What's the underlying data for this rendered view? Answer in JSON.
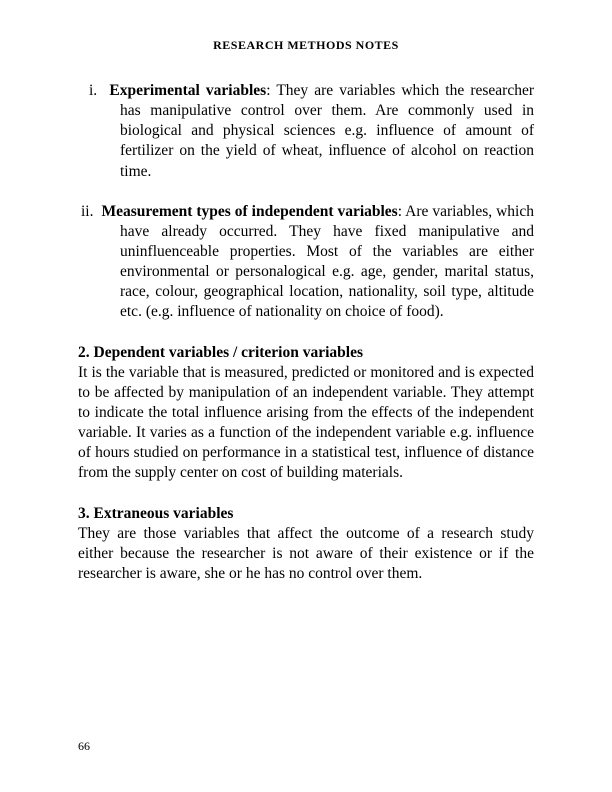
{
  "header": {
    "title": "RESEARCH METHODS NOTES"
  },
  "items": {
    "i": {
      "marker": "i.",
      "label": "Experimental variables",
      "text": ": They are variables which the researcher has manipulative control over them. Are commonly used in biological and physical sciences e.g. influence of amount of fertilizer on the yield of wheat, influence of alcohol on reaction time."
    },
    "ii": {
      "marker": "ii.",
      "label": "Measurement types of independent variables",
      "text": ": Are variables, which have already occurred. They have fixed manipulative and uninfluenceable properties. Most of the variables are either environmental or personalogical e.g. age, gender, marital status, race, colour, geographical location, nationality, soil type, altitude etc. (e.g. influence of nationality on choice of food)."
    }
  },
  "sections": {
    "s2": {
      "heading": "2. Dependent variables / criterion variables",
      "body": "It is the variable that is measured, predicted or monitored and is expected to be affected by manipulation of an independent variable. They attempt to indicate the total influence arising from the effects of the independent variable. It varies as a function of the independent variable e.g. influence of hours studied on performance in a statistical test, influence of distance from the supply center on cost of building materials."
    },
    "s3": {
      "heading": "3. Extraneous variables",
      "body": "They are those variables that affect the outcome of a research study either because the researcher is not aware of their existence or if the researcher is aware, she or he has no control over them."
    }
  },
  "page": {
    "number": "66"
  }
}
